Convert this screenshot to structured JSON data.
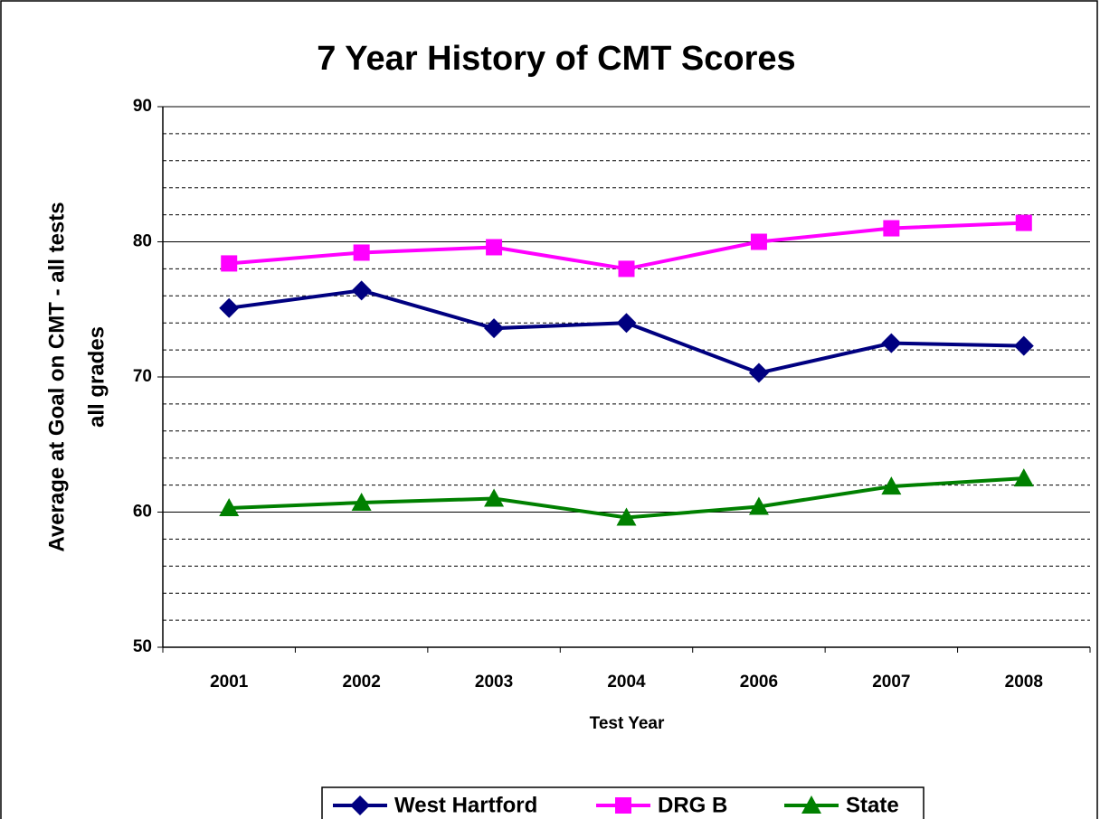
{
  "chart_data": {
    "type": "line",
    "title": "7 Year History of CMT Scores",
    "xlabel": "Test Year",
    "ylabel": [
      "Average at Goal on CMT - all tests",
      "all grades"
    ],
    "categories": [
      "2001",
      "2002",
      "2003",
      "2004",
      "2006",
      "2007",
      "2008"
    ],
    "series": [
      {
        "name": "West Hartford",
        "color": "#000080",
        "marker": "diamond",
        "values": [
          75.1,
          76.4,
          73.6,
          74.0,
          70.3,
          72.5,
          72.3
        ]
      },
      {
        "name": "DRG B",
        "color": "#ff00ff",
        "marker": "square",
        "values": [
          78.4,
          79.2,
          79.6,
          78.0,
          80.0,
          81.0,
          81.4
        ]
      },
      {
        "name": "State",
        "color": "#008000",
        "marker": "triangle",
        "values": [
          60.3,
          60.7,
          61.0,
          59.6,
          60.4,
          61.9,
          62.5
        ]
      }
    ],
    "ylim": [
      50,
      90
    ],
    "yticks": [
      50,
      60,
      70,
      80,
      90
    ],
    "minor_yticks": [
      52,
      54,
      56,
      58,
      62,
      64,
      66,
      68,
      72,
      74,
      76,
      78,
      82,
      84,
      86,
      88
    ],
    "grid": true,
    "legend": "bottom"
  }
}
